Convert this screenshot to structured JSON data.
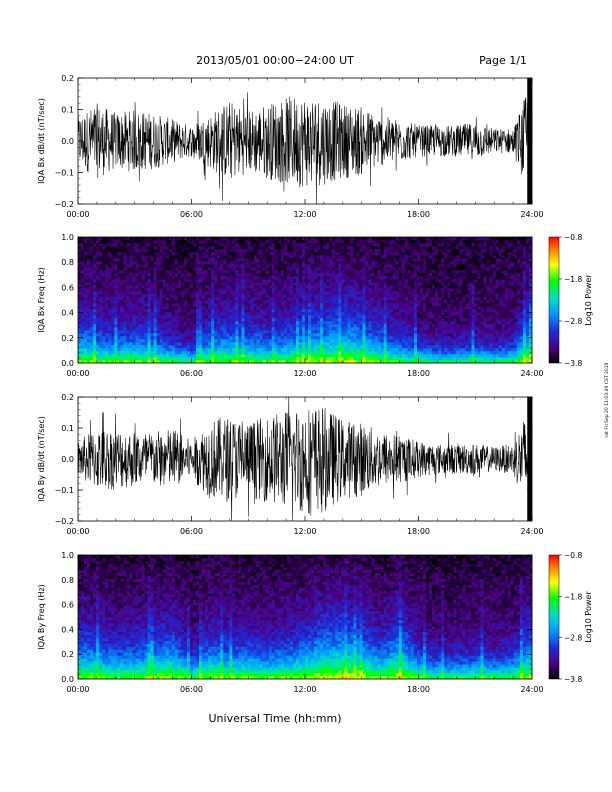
{
  "header": {
    "title": "2013/05/01  00:00−24:00 UT",
    "page": "Page 1/1"
  },
  "footer": {
    "xlabel": "Universal Time (hh:mm)",
    "side_note": "rat Fri Sep 20 11:03:49 CST 2019"
  },
  "chart_data": [
    {
      "type": "line",
      "ylabel": "IQA Bx dB/dt (nT/sec)",
      "xlim": [
        0,
        24
      ],
      "ylim": [
        -0.2,
        0.2
      ],
      "x_ticks": [
        "00:00",
        "06:00",
        "12:00",
        "18:00",
        "24:00"
      ],
      "y_ticks": [
        "−0.2",
        "−0.1",
        "0.0",
        "0.1",
        "0.2"
      ],
      "series": [
        {
          "envelope_hours": [
            0,
            1,
            2,
            3,
            4,
            5,
            6,
            7,
            8,
            9,
            10,
            11,
            12,
            13,
            14,
            15,
            16,
            17,
            18,
            19,
            20,
            21,
            22,
            23,
            24
          ],
          "envelope_amplitude": [
            0.08,
            0.12,
            0.09,
            0.1,
            0.09,
            0.07,
            0.05,
            0.09,
            0.13,
            0.1,
            0.12,
            0.14,
            0.15,
            0.14,
            0.12,
            0.11,
            0.08,
            0.07,
            0.05,
            0.05,
            0.05,
            0.06,
            0.04,
            0.04,
            0.2
          ]
        }
      ]
    },
    {
      "type": "heatmap",
      "ylabel": "IQA Bx Freq (Hz)",
      "xlim": [
        0,
        24
      ],
      "ylim": [
        0.0,
        1.0
      ],
      "x_ticks": [
        "00:00",
        "06:00",
        "12:00",
        "18:00",
        "24:00"
      ],
      "y_ticks": [
        "0.0",
        "0.2",
        "0.4",
        "0.6",
        "0.8",
        "1.0"
      ],
      "colorbar": {
        "label": "Log10 Power",
        "range": [
          -3.8,
          -0.8
        ],
        "ticks": [
          "−0.8",
          "−1.8",
          "−2.8",
          "−3.8"
        ]
      },
      "activity_hours": [
        0,
        1,
        2,
        3,
        4,
        5,
        6,
        7,
        8,
        9,
        10,
        11,
        12,
        13,
        14,
        15,
        16,
        17,
        18,
        19,
        20,
        21,
        22,
        23,
        24
      ],
      "activity_level": [
        0.55,
        0.45,
        0.4,
        0.45,
        0.4,
        0.3,
        0.2,
        0.45,
        0.5,
        0.45,
        0.4,
        0.45,
        0.55,
        0.6,
        0.7,
        0.6,
        0.45,
        0.35,
        0.25,
        0.2,
        0.2,
        0.25,
        0.2,
        0.25,
        0.7
      ]
    },
    {
      "type": "line",
      "ylabel": "IQA By dB/dt (nT/sec)",
      "xlim": [
        0,
        24
      ],
      "ylim": [
        -0.2,
        0.2
      ],
      "x_ticks": [
        "00:00",
        "06:00",
        "12:00",
        "18:00",
        "24:00"
      ],
      "y_ticks": [
        "−0.2",
        "−0.1",
        "0.0",
        "0.1",
        "0.2"
      ],
      "series": [
        {
          "envelope_hours": [
            0,
            1,
            2,
            3,
            4,
            5,
            6,
            7,
            8,
            9,
            10,
            11,
            12,
            13,
            14,
            15,
            16,
            17,
            18,
            19,
            20,
            21,
            22,
            23,
            24
          ],
          "envelope_amplitude": [
            0.06,
            0.1,
            0.1,
            0.09,
            0.09,
            0.1,
            0.06,
            0.13,
            0.14,
            0.12,
            0.14,
            0.16,
            0.18,
            0.17,
            0.13,
            0.12,
            0.09,
            0.08,
            0.06,
            0.05,
            0.05,
            0.05,
            0.04,
            0.05,
            0.2
          ]
        }
      ]
    },
    {
      "type": "heatmap",
      "ylabel": "IQA By Freq (Hz)",
      "xlim": [
        0,
        24
      ],
      "ylim": [
        0.0,
        1.0
      ],
      "x_ticks": [
        "00:00",
        "06:00",
        "12:00",
        "18:00",
        "24:00"
      ],
      "y_ticks": [
        "0.0",
        "0.2",
        "0.4",
        "0.6",
        "0.8",
        "1.0"
      ],
      "colorbar": {
        "label": "Log10 Power",
        "range": [
          -3.8,
          -0.8
        ],
        "ticks": [
          "−0.8",
          "−1.8",
          "−2.8",
          "−3.8"
        ]
      },
      "activity_hours": [
        0,
        1,
        2,
        3,
        4,
        5,
        6,
        7,
        8,
        9,
        10,
        11,
        12,
        13,
        14,
        15,
        16,
        17,
        18,
        19,
        20,
        21,
        22,
        23,
        24
      ],
      "activity_level": [
        0.6,
        0.55,
        0.45,
        0.5,
        0.55,
        0.65,
        0.3,
        0.55,
        0.5,
        0.5,
        0.45,
        0.5,
        0.6,
        0.75,
        0.8,
        0.7,
        0.5,
        0.75,
        0.4,
        0.3,
        0.3,
        0.35,
        0.3,
        0.35,
        0.7
      ]
    }
  ]
}
